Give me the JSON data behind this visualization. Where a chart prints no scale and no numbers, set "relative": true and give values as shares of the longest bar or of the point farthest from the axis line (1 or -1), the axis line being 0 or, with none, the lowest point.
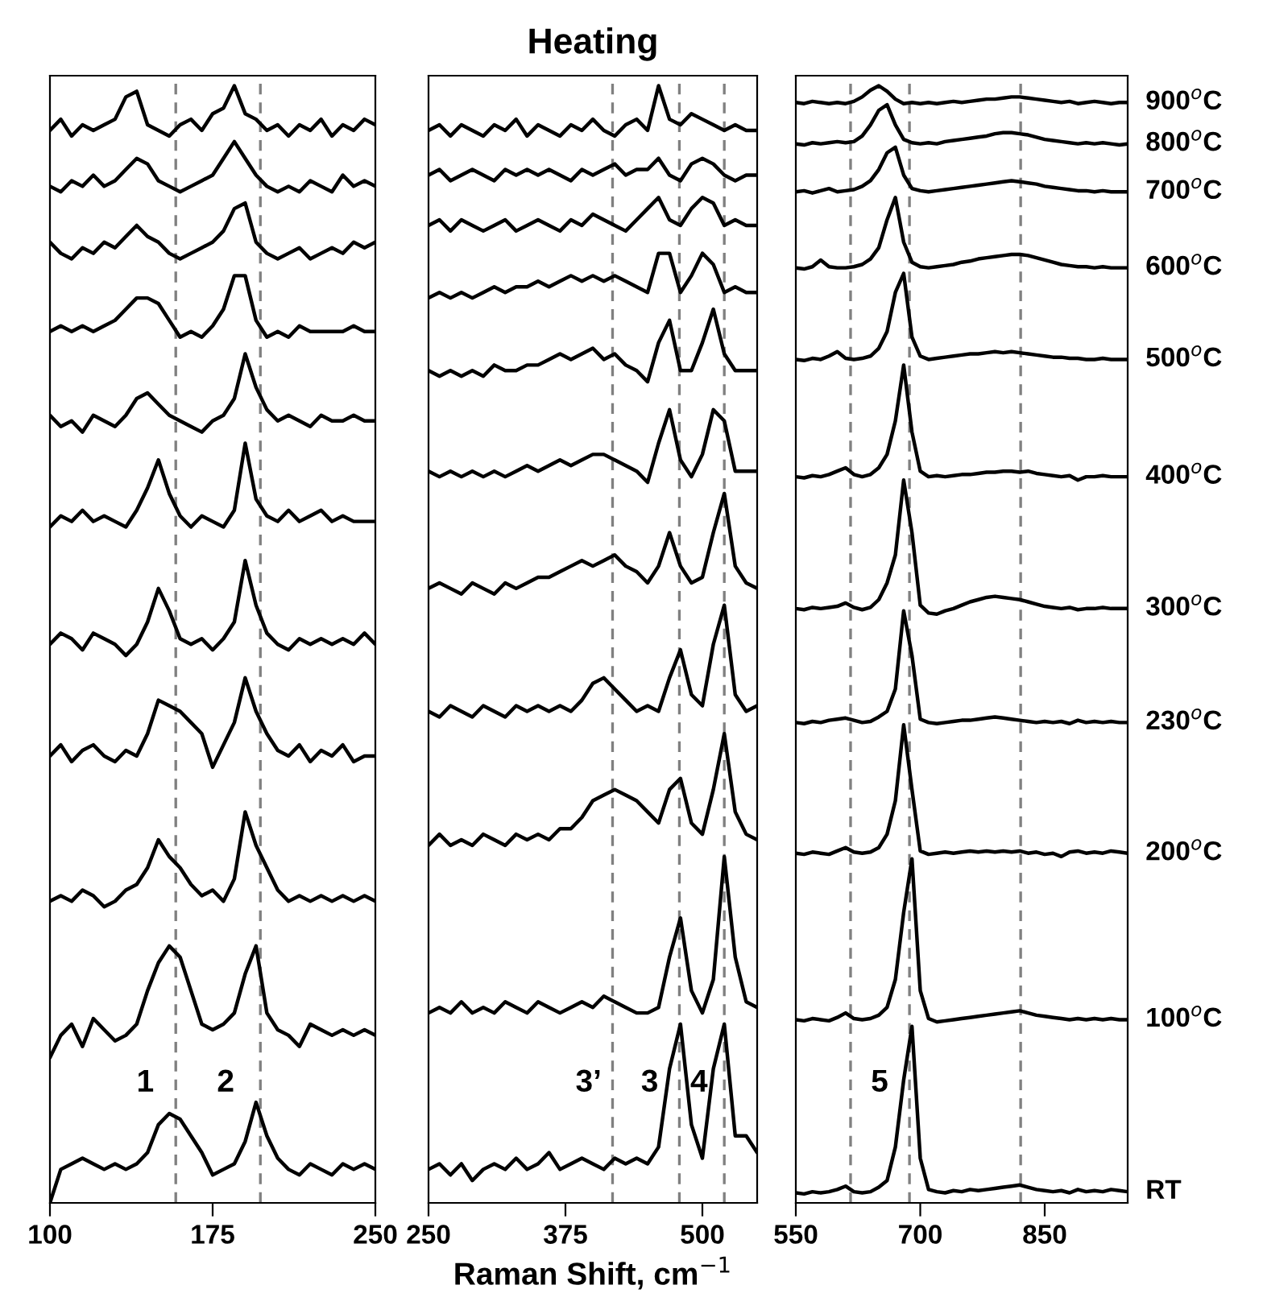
{
  "chart_data": [
    {
      "type": "line",
      "relative": true,
      "tick_labels": "x",
      "grid": false,
      "xlim": [
        100,
        250
      ],
      "xticks": [
        100,
        175,
        250
      ],
      "x": [
        100,
        105,
        110,
        115,
        120,
        125,
        130,
        135,
        140,
        145,
        150,
        155,
        160,
        165,
        170,
        175,
        180,
        185,
        190,
        195,
        200,
        205,
        210,
        215,
        220,
        225,
        230,
        235,
        240,
        245,
        250
      ],
      "ref_lines": [
        {
          "axis": "x",
          "value": 158,
          "color": "#808080",
          "line_style": "dashed"
        },
        {
          "axis": "x",
          "value": 197,
          "color": "#808080",
          "line_style": "dashed"
        }
      ],
      "annotations": [
        "1",
        "2"
      ],
      "series": [
        {
          "color": "#000000",
          "values": [
            0.96,
            0.97,
            0.955,
            0.965,
            0.96,
            0.965,
            0.97,
            0.99,
            0.995,
            0.965,
            0.96,
            0.955,
            0.965,
            0.97,
            0.96,
            0.975,
            0.98,
            1.0,
            0.975,
            0.97,
            0.96,
            0.965,
            0.955,
            0.965,
            0.96,
            0.97,
            0.955,
            0.965,
            0.96,
            0.97,
            0.965
          ]
        },
        {
          "color": "#000000",
          "values": [
            0.91,
            0.905,
            0.915,
            0.91,
            0.92,
            0.91,
            0.915,
            0.925,
            0.935,
            0.93,
            0.915,
            0.91,
            0.905,
            0.91,
            0.915,
            0.92,
            0.935,
            0.95,
            0.935,
            0.92,
            0.91,
            0.905,
            0.91,
            0.905,
            0.915,
            0.91,
            0.905,
            0.92,
            0.91,
            0.915,
            0.91
          ]
        },
        {
          "color": "#000000",
          "values": [
            0.86,
            0.85,
            0.845,
            0.855,
            0.85,
            0.86,
            0.855,
            0.865,
            0.875,
            0.865,
            0.86,
            0.85,
            0.845,
            0.85,
            0.855,
            0.86,
            0.87,
            0.89,
            0.895,
            0.86,
            0.85,
            0.845,
            0.85,
            0.855,
            0.845,
            0.85,
            0.855,
            0.85,
            0.86,
            0.855,
            0.86
          ]
        },
        {
          "color": "#000000",
          "values": [
            0.78,
            0.785,
            0.78,
            0.785,
            0.78,
            0.785,
            0.79,
            0.8,
            0.81,
            0.81,
            0.805,
            0.79,
            0.775,
            0.78,
            0.775,
            0.785,
            0.8,
            0.83,
            0.83,
            0.79,
            0.775,
            0.78,
            0.775,
            0.785,
            0.78,
            0.78,
            0.78,
            0.78,
            0.785,
            0.78,
            0.78
          ]
        },
        {
          "color": "#000000",
          "values": [
            0.705,
            0.695,
            0.7,
            0.69,
            0.705,
            0.7,
            0.695,
            0.705,
            0.72,
            0.725,
            0.715,
            0.705,
            0.7,
            0.695,
            0.69,
            0.7,
            0.705,
            0.72,
            0.76,
            0.73,
            0.71,
            0.7,
            0.705,
            0.7,
            0.695,
            0.705,
            0.7,
            0.7,
            0.705,
            0.7,
            0.7
          ]
        },
        {
          "color": "#000000",
          "values": [
            0.605,
            0.615,
            0.61,
            0.62,
            0.61,
            0.615,
            0.61,
            0.605,
            0.62,
            0.64,
            0.665,
            0.635,
            0.615,
            0.605,
            0.615,
            0.61,
            0.605,
            0.62,
            0.68,
            0.63,
            0.615,
            0.61,
            0.62,
            0.61,
            0.615,
            0.62,
            0.61,
            0.615,
            0.61,
            0.61,
            0.61
          ]
        },
        {
          "color": "#000000",
          "values": [
            0.5,
            0.51,
            0.505,
            0.495,
            0.51,
            0.505,
            0.5,
            0.49,
            0.5,
            0.52,
            0.55,
            0.53,
            0.505,
            0.5,
            0.505,
            0.495,
            0.505,
            0.52,
            0.575,
            0.535,
            0.51,
            0.5,
            0.495,
            0.505,
            0.5,
            0.505,
            0.5,
            0.505,
            0.5,
            0.51,
            0.5
          ]
        },
        {
          "color": "#000000",
          "values": [
            0.4,
            0.41,
            0.395,
            0.405,
            0.41,
            0.4,
            0.395,
            0.405,
            0.4,
            0.42,
            0.45,
            0.445,
            0.44,
            0.43,
            0.42,
            0.39,
            0.41,
            0.43,
            0.47,
            0.44,
            0.42,
            0.405,
            0.4,
            0.41,
            0.395,
            0.405,
            0.4,
            0.41,
            0.395,
            0.4,
            0.4
          ]
        },
        {
          "color": "#000000",
          "values": [
            0.27,
            0.275,
            0.27,
            0.28,
            0.275,
            0.265,
            0.27,
            0.28,
            0.285,
            0.3,
            0.325,
            0.31,
            0.3,
            0.285,
            0.275,
            0.28,
            0.27,
            0.29,
            0.35,
            0.32,
            0.3,
            0.28,
            0.27,
            0.275,
            0.27,
            0.275,
            0.27,
            0.275,
            0.27,
            0.275,
            0.27
          ]
        },
        {
          "color": "#000000",
          "values": [
            0.13,
            0.15,
            0.16,
            0.14,
            0.165,
            0.155,
            0.145,
            0.15,
            0.16,
            0.19,
            0.215,
            0.23,
            0.22,
            0.19,
            0.16,
            0.155,
            0.16,
            0.17,
            0.205,
            0.23,
            0.17,
            0.155,
            0.15,
            0.14,
            0.16,
            0.155,
            0.15,
            0.155,
            0.15,
            0.155,
            0.15
          ]
        },
        {
          "color": "#000000",
          "values": [
            0.0,
            0.03,
            0.035,
            0.04,
            0.035,
            0.03,
            0.035,
            0.03,
            0.035,
            0.045,
            0.07,
            0.08,
            0.075,
            0.06,
            0.045,
            0.025,
            0.03,
            0.035,
            0.055,
            0.09,
            0.06,
            0.04,
            0.03,
            0.025,
            0.035,
            0.03,
            0.025,
            0.035,
            0.03,
            0.035,
            0.03
          ]
        }
      ]
    },
    {
      "type": "line",
      "relative": true,
      "tick_labels": "x",
      "grid": false,
      "title": "Heating",
      "xlabel": "Raman Shift, cm$^{−1}$",
      "xlim": [
        250,
        550
      ],
      "xticks": [
        250,
        375,
        500
      ],
      "x": [
        250,
        260,
        270,
        280,
        290,
        300,
        310,
        320,
        330,
        340,
        350,
        360,
        370,
        380,
        390,
        400,
        410,
        420,
        430,
        440,
        450,
        460,
        470,
        480,
        490,
        500,
        510,
        520,
        530,
        540,
        550
      ],
      "ref_lines": [
        {
          "axis": "x",
          "value": 418,
          "color": "#808080",
          "line_style": "dashed"
        },
        {
          "axis": "x",
          "value": 479,
          "color": "#808080",
          "line_style": "dashed"
        },
        {
          "axis": "x",
          "value": 520,
          "color": "#808080",
          "line_style": "dashed"
        }
      ],
      "annotations": [
        "3’",
        "3",
        "4"
      ],
      "series": [
        {
          "color": "#000000",
          "values": [
            0.96,
            0.965,
            0.955,
            0.965,
            0.96,
            0.955,
            0.965,
            0.96,
            0.97,
            0.955,
            0.965,
            0.96,
            0.955,
            0.965,
            0.96,
            0.97,
            0.96,
            0.955,
            0.965,
            0.97,
            0.96,
            1.0,
            0.97,
            0.965,
            0.975,
            0.97,
            0.965,
            0.96,
            0.965,
            0.96,
            0.96
          ]
        },
        {
          "color": "#000000",
          "values": [
            0.92,
            0.925,
            0.915,
            0.92,
            0.925,
            0.92,
            0.915,
            0.925,
            0.92,
            0.925,
            0.92,
            0.925,
            0.92,
            0.915,
            0.925,
            0.92,
            0.925,
            0.93,
            0.92,
            0.925,
            0.925,
            0.935,
            0.92,
            0.915,
            0.93,
            0.935,
            0.93,
            0.92,
            0.915,
            0.92,
            0.92
          ]
        },
        {
          "color": "#000000",
          "values": [
            0.875,
            0.88,
            0.87,
            0.88,
            0.875,
            0.87,
            0.875,
            0.88,
            0.87,
            0.875,
            0.88,
            0.875,
            0.87,
            0.88,
            0.875,
            0.885,
            0.88,
            0.875,
            0.87,
            0.88,
            0.89,
            0.9,
            0.88,
            0.875,
            0.89,
            0.9,
            0.895,
            0.875,
            0.88,
            0.875,
            0.875
          ]
        },
        {
          "color": "#000000",
          "values": [
            0.81,
            0.815,
            0.81,
            0.815,
            0.81,
            0.815,
            0.82,
            0.815,
            0.82,
            0.82,
            0.825,
            0.82,
            0.825,
            0.83,
            0.825,
            0.83,
            0.825,
            0.83,
            0.825,
            0.82,
            0.815,
            0.85,
            0.85,
            0.815,
            0.83,
            0.85,
            0.84,
            0.815,
            0.82,
            0.815,
            0.815
          ]
        },
        {
          "color": "#000000",
          "values": [
            0.745,
            0.74,
            0.745,
            0.74,
            0.745,
            0.74,
            0.75,
            0.745,
            0.745,
            0.75,
            0.75,
            0.755,
            0.76,
            0.755,
            0.76,
            0.765,
            0.755,
            0.76,
            0.75,
            0.745,
            0.735,
            0.77,
            0.79,
            0.745,
            0.745,
            0.77,
            0.8,
            0.76,
            0.745,
            0.745,
            0.745
          ]
        },
        {
          "color": "#000000",
          "values": [
            0.655,
            0.65,
            0.655,
            0.65,
            0.655,
            0.65,
            0.655,
            0.65,
            0.655,
            0.66,
            0.655,
            0.66,
            0.665,
            0.66,
            0.665,
            0.67,
            0.67,
            0.665,
            0.66,
            0.655,
            0.645,
            0.68,
            0.71,
            0.665,
            0.65,
            0.67,
            0.71,
            0.7,
            0.655,
            0.655,
            0.655
          ]
        },
        {
          "color": "#000000",
          "values": [
            0.55,
            0.555,
            0.55,
            0.545,
            0.555,
            0.55,
            0.545,
            0.555,
            0.55,
            0.555,
            0.56,
            0.56,
            0.565,
            0.57,
            0.575,
            0.57,
            0.575,
            0.58,
            0.57,
            0.565,
            0.555,
            0.57,
            0.6,
            0.57,
            0.555,
            0.56,
            0.6,
            0.635,
            0.57,
            0.555,
            0.55
          ]
        },
        {
          "color": "#000000",
          "values": [
            0.44,
            0.435,
            0.445,
            0.44,
            0.435,
            0.445,
            0.44,
            0.435,
            0.445,
            0.44,
            0.445,
            0.44,
            0.445,
            0.44,
            0.45,
            0.465,
            0.47,
            0.46,
            0.45,
            0.44,
            0.445,
            0.44,
            0.47,
            0.495,
            0.455,
            0.445,
            0.5,
            0.535,
            0.455,
            0.44,
            0.445
          ]
        },
        {
          "color": "#000000",
          "values": [
            0.32,
            0.33,
            0.32,
            0.325,
            0.32,
            0.33,
            0.325,
            0.32,
            0.33,
            0.325,
            0.33,
            0.325,
            0.335,
            0.335,
            0.345,
            0.36,
            0.365,
            0.37,
            0.365,
            0.36,
            0.35,
            0.34,
            0.37,
            0.38,
            0.34,
            0.33,
            0.37,
            0.42,
            0.35,
            0.33,
            0.325
          ]
        },
        {
          "color": "#000000",
          "values": [
            0.17,
            0.175,
            0.17,
            0.18,
            0.17,
            0.175,
            0.17,
            0.18,
            0.175,
            0.17,
            0.18,
            0.175,
            0.17,
            0.175,
            0.18,
            0.175,
            0.185,
            0.18,
            0.175,
            0.17,
            0.17,
            0.175,
            0.22,
            0.255,
            0.19,
            0.17,
            0.2,
            0.31,
            0.22,
            0.18,
            0.175
          ]
        },
        {
          "color": "#000000",
          "values": [
            0.03,
            0.035,
            0.025,
            0.035,
            0.02,
            0.03,
            0.035,
            0.03,
            0.04,
            0.03,
            0.035,
            0.045,
            0.03,
            0.035,
            0.04,
            0.035,
            0.03,
            0.04,
            0.035,
            0.04,
            0.035,
            0.05,
            0.12,
            0.16,
            0.07,
            0.04,
            0.12,
            0.16,
            0.06,
            0.06,
            0.045
          ]
        }
      ]
    },
    {
      "type": "line",
      "relative": true,
      "tick_labels": "x",
      "grid": false,
      "xlim": [
        550,
        950
      ],
      "xticks": [
        550,
        700,
        850
      ],
      "x": [
        550,
        560,
        570,
        580,
        590,
        600,
        610,
        620,
        630,
        640,
        650,
        660,
        670,
        680,
        690,
        700,
        710,
        720,
        730,
        740,
        750,
        760,
        770,
        780,
        790,
        800,
        810,
        820,
        830,
        840,
        850,
        860,
        870,
        880,
        890,
        900,
        910,
        920,
        930,
        940,
        950
      ],
      "ref_lines": [
        {
          "axis": "x",
          "value": 616,
          "color": "#808080",
          "line_style": "dashed"
        },
        {
          "axis": "x",
          "value": 687,
          "color": "#808080",
          "line_style": "dashed"
        },
        {
          "axis": "x",
          "value": 821,
          "color": "#808080",
          "line_style": "dashed"
        }
      ],
      "annotations": [
        "5"
      ],
      "series": [
        {
          "name": "900$^{o}$C",
          "color": "#000000",
          "values": [
            0.985,
            0.984,
            0.986,
            0.985,
            0.984,
            0.985,
            0.984,
            0.986,
            0.99,
            0.996,
            1.0,
            0.995,
            0.988,
            0.984,
            0.985,
            0.984,
            0.985,
            0.984,
            0.985,
            0.986,
            0.985,
            0.986,
            0.987,
            0.988,
            0.988,
            0.989,
            0.99,
            0.99,
            0.989,
            0.988,
            0.987,
            0.986,
            0.985,
            0.986,
            0.984,
            0.985,
            0.986,
            0.985,
            0.984,
            0.985,
            0.985
          ]
        },
        {
          "name": "800$^{o}$C",
          "color": "#000000",
          "values": [
            0.948,
            0.947,
            0.949,
            0.948,
            0.949,
            0.95,
            0.949,
            0.95,
            0.955,
            0.965,
            0.978,
            0.983,
            0.965,
            0.952,
            0.949,
            0.948,
            0.949,
            0.948,
            0.95,
            0.951,
            0.952,
            0.953,
            0.954,
            0.955,
            0.957,
            0.958,
            0.958,
            0.957,
            0.956,
            0.954,
            0.952,
            0.951,
            0.95,
            0.949,
            0.948,
            0.949,
            0.948,
            0.949,
            0.948,
            0.947,
            0.948
          ]
        },
        {
          "name": "700$^{o}$C",
          "color": "#000000",
          "values": [
            0.905,
            0.906,
            0.904,
            0.906,
            0.908,
            0.905,
            0.906,
            0.907,
            0.91,
            0.915,
            0.925,
            0.94,
            0.945,
            0.92,
            0.908,
            0.906,
            0.905,
            0.906,
            0.907,
            0.908,
            0.909,
            0.91,
            0.911,
            0.912,
            0.913,
            0.914,
            0.915,
            0.914,
            0.913,
            0.912,
            0.91,
            0.909,
            0.908,
            0.907,
            0.906,
            0.906,
            0.905,
            0.906,
            0.905,
            0.905,
            0.905
          ]
        },
        {
          "name": "600$^{o}$C",
          "color": "#000000",
          "values": [
            0.837,
            0.836,
            0.838,
            0.844,
            0.838,
            0.837,
            0.837,
            0.838,
            0.84,
            0.845,
            0.855,
            0.88,
            0.9,
            0.86,
            0.842,
            0.838,
            0.837,
            0.838,
            0.839,
            0.84,
            0.842,
            0.843,
            0.845,
            0.846,
            0.847,
            0.848,
            0.849,
            0.849,
            0.848,
            0.846,
            0.844,
            0.842,
            0.84,
            0.839,
            0.838,
            0.838,
            0.837,
            0.838,
            0.837,
            0.837,
            0.837
          ]
        },
        {
          "name": "500$^{o}$C",
          "color": "#000000",
          "values": [
            0.755,
            0.754,
            0.756,
            0.755,
            0.758,
            0.762,
            0.756,
            0.755,
            0.756,
            0.758,
            0.765,
            0.78,
            0.815,
            0.832,
            0.775,
            0.758,
            0.755,
            0.756,
            0.757,
            0.758,
            0.759,
            0.76,
            0.76,
            0.761,
            0.762,
            0.761,
            0.762,
            0.761,
            0.76,
            0.759,
            0.758,
            0.757,
            0.757,
            0.756,
            0.756,
            0.755,
            0.755,
            0.756,
            0.755,
            0.755,
            0.755
          ]
        },
        {
          "name": "400$^{o}$C",
          "color": "#000000",
          "values": [
            0.65,
            0.649,
            0.651,
            0.65,
            0.652,
            0.655,
            0.658,
            0.652,
            0.65,
            0.652,
            0.658,
            0.67,
            0.7,
            0.75,
            0.69,
            0.655,
            0.65,
            0.651,
            0.65,
            0.651,
            0.652,
            0.652,
            0.653,
            0.654,
            0.654,
            0.655,
            0.655,
            0.654,
            0.655,
            0.653,
            0.652,
            0.651,
            0.65,
            0.651,
            0.647,
            0.65,
            0.65,
            0.651,
            0.65,
            0.65,
            0.65
          ]
        },
        {
          "name": "300$^{o}$C",
          "color": "#000000",
          "values": [
            0.532,
            0.531,
            0.533,
            0.532,
            0.533,
            0.534,
            0.537,
            0.533,
            0.531,
            0.533,
            0.54,
            0.555,
            0.58,
            0.647,
            0.6,
            0.535,
            0.528,
            0.527,
            0.53,
            0.532,
            0.535,
            0.538,
            0.54,
            0.542,
            0.543,
            0.542,
            0.541,
            0.54,
            0.538,
            0.536,
            0.534,
            0.533,
            0.532,
            0.533,
            0.531,
            0.532,
            0.532,
            0.533,
            0.532,
            0.532,
            0.532
          ]
        },
        {
          "name": "230$^{o}$C",
          "color": "#000000",
          "values": [
            0.43,
            0.429,
            0.431,
            0.43,
            0.432,
            0.433,
            0.434,
            0.432,
            0.43,
            0.431,
            0.435,
            0.44,
            0.46,
            0.53,
            0.49,
            0.433,
            0.43,
            0.429,
            0.43,
            0.431,
            0.432,
            0.432,
            0.433,
            0.434,
            0.435,
            0.434,
            0.433,
            0.432,
            0.431,
            0.43,
            0.431,
            0.43,
            0.431,
            0.429,
            0.432,
            0.43,
            0.431,
            0.43,
            0.431,
            0.43,
            0.43
          ]
        },
        {
          "name": "200$^{o}$C",
          "color": "#000000",
          "values": [
            0.313,
            0.312,
            0.314,
            0.313,
            0.312,
            0.315,
            0.318,
            0.314,
            0.313,
            0.314,
            0.318,
            0.33,
            0.36,
            0.428,
            0.37,
            0.315,
            0.312,
            0.313,
            0.314,
            0.313,
            0.314,
            0.315,
            0.314,
            0.315,
            0.314,
            0.315,
            0.314,
            0.315,
            0.313,
            0.314,
            0.312,
            0.313,
            0.31,
            0.314,
            0.315,
            0.313,
            0.314,
            0.313,
            0.315,
            0.314,
            0.313
          ]
        },
        {
          "name": "100$^{o}$C",
          "color": "#000000",
          "values": [
            0.164,
            0.163,
            0.165,
            0.164,
            0.163,
            0.166,
            0.17,
            0.165,
            0.164,
            0.165,
            0.168,
            0.175,
            0.2,
            0.26,
            0.308,
            0.19,
            0.165,
            0.162,
            0.163,
            0.164,
            0.165,
            0.166,
            0.167,
            0.168,
            0.169,
            0.17,
            0.171,
            0.172,
            0.17,
            0.168,
            0.167,
            0.166,
            0.165,
            0.164,
            0.165,
            0.164,
            0.165,
            0.164,
            0.165,
            0.164,
            0.164
          ]
        },
        {
          "name": "RT",
          "color": "#000000",
          "values": [
            0.009,
            0.008,
            0.01,
            0.009,
            0.01,
            0.012,
            0.015,
            0.01,
            0.009,
            0.01,
            0.014,
            0.02,
            0.05,
            0.11,
            0.158,
            0.04,
            0.012,
            0.01,
            0.009,
            0.011,
            0.01,
            0.012,
            0.011,
            0.012,
            0.013,
            0.014,
            0.015,
            0.016,
            0.014,
            0.012,
            0.011,
            0.01,
            0.011,
            0.009,
            0.012,
            0.01,
            0.011,
            0.01,
            0.012,
            0.011,
            0.01
          ]
        }
      ]
    }
  ]
}
